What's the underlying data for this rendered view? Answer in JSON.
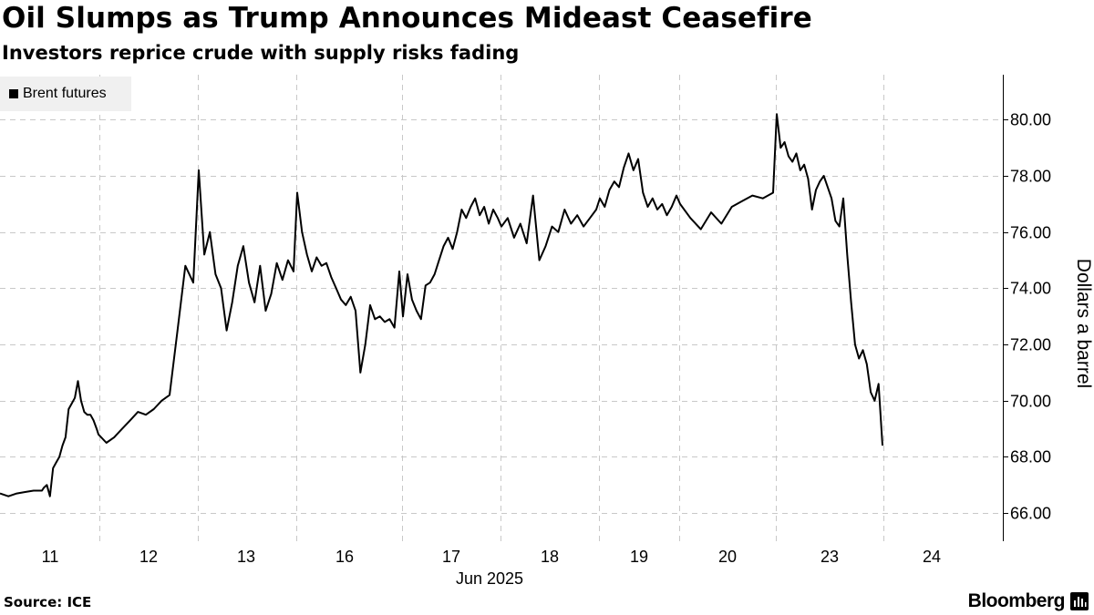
{
  "header": {
    "title": "Oil Slumps as Trump Announces Mideast Ceasefire",
    "subtitle": "Investors reprice crude with supply risks fading"
  },
  "legend": {
    "label": "Brent futures",
    "color": "#000000"
  },
  "footer": {
    "source": "Source: ICE",
    "brand": "Bloomberg"
  },
  "chart_data": {
    "type": "line",
    "title": "Oil Slumps as Trump Announces Mideast Ceasefire",
    "subtitle": "Investors reprice crude with supply risks fading",
    "ylabel": "Dollars a barrel",
    "xlabel": "Jun 2025",
    "ylim": [
      65.0,
      81.6
    ],
    "y_ticks": [
      "66.00",
      "68.00",
      "70.00",
      "72.00",
      "74.00",
      "76.00",
      "78.00",
      "80.00"
    ],
    "x_ticks": [
      "11",
      "12",
      "13",
      "16",
      "17",
      "18",
      "19",
      "20",
      "23",
      "24"
    ],
    "grid": true,
    "legend_position": "top-left",
    "y_axis_position": "right",
    "series": [
      {
        "name": "Brent futures",
        "color": "#000000",
        "points": [
          [
            "10 Jun",
            66.7
          ],
          [
            "10 Jun",
            66.6
          ],
          [
            "10 Jun",
            66.7
          ],
          [
            "10 Jun",
            66.75
          ],
          [
            "10 Jun",
            66.8
          ],
          [
            "10 Jun",
            66.8
          ],
          [
            "11 Jun",
            66.9
          ],
          [
            "11 Jun",
            67.0
          ],
          [
            "11 Jun",
            66.6
          ],
          [
            "11 Jun",
            67.6
          ],
          [
            "11 Jun",
            67.8
          ],
          [
            "11 Jun",
            68.0
          ],
          [
            "11 Jun",
            68.4
          ],
          [
            "11 Jun",
            68.7
          ],
          [
            "11 Jun",
            69.7
          ],
          [
            "11 Jun",
            69.9
          ],
          [
            "11 Jun",
            70.1
          ],
          [
            "11 Jun",
            70.7
          ],
          [
            "11 Jun",
            70.0
          ],
          [
            "11 Jun",
            69.6
          ],
          [
            "11 Jun",
            69.5
          ],
          [
            "11 Jun",
            69.5
          ],
          [
            "11 Jun",
            69.3
          ],
          [
            "11 Jun",
            69.0
          ],
          [
            "12 Jun",
            68.8
          ],
          [
            "12 Jun",
            68.5
          ],
          [
            "12 Jun",
            68.7
          ],
          [
            "12 Jun",
            69.0
          ],
          [
            "12 Jun",
            69.3
          ],
          [
            "12 Jun",
            69.6
          ],
          [
            "12 Jun",
            69.5
          ],
          [
            "12 Jun",
            69.7
          ],
          [
            "12 Jun",
            70.0
          ],
          [
            "12 Jun",
            70.2
          ],
          [
            "12 Jun",
            72.5
          ],
          [
            "12 Jun",
            74.8
          ],
          [
            "12 Jun",
            74.2
          ],
          [
            "13 Jun",
            78.2
          ],
          [
            "13 Jun",
            75.2
          ],
          [
            "13 Jun",
            76.0
          ],
          [
            "13 Jun",
            74.5
          ],
          [
            "13 Jun",
            74.0
          ],
          [
            "13 Jun",
            72.5
          ],
          [
            "13 Jun",
            73.5
          ],
          [
            "13 Jun",
            74.8
          ],
          [
            "13 Jun",
            75.5
          ],
          [
            "13 Jun",
            74.2
          ],
          [
            "13 Jun",
            73.5
          ],
          [
            "13 Jun",
            74.8
          ],
          [
            "13 Jun",
            73.2
          ],
          [
            "13 Jun",
            73.8
          ],
          [
            "13 Jun",
            74.9
          ],
          [
            "13 Jun",
            74.3
          ],
          [
            "13 Jun",
            75.0
          ],
          [
            "13 Jun",
            74.6
          ],
          [
            "16 Jun",
            77.4
          ],
          [
            "16 Jun",
            76.0
          ],
          [
            "16 Jun",
            75.2
          ],
          [
            "16 Jun",
            74.6
          ],
          [
            "16 Jun",
            75.1
          ],
          [
            "16 Jun",
            74.8
          ],
          [
            "16 Jun",
            74.9
          ],
          [
            "16 Jun",
            74.4
          ],
          [
            "16 Jun",
            74.0
          ],
          [
            "16 Jun",
            73.6
          ],
          [
            "16 Jun",
            73.4
          ],
          [
            "16 Jun",
            73.7
          ],
          [
            "16 Jun",
            73.2
          ],
          [
            "16 Jun",
            71.0
          ],
          [
            "16 Jun",
            72.0
          ],
          [
            "16 Jun",
            73.4
          ],
          [
            "16 Jun",
            72.9
          ],
          [
            "16 Jun",
            73.0
          ],
          [
            "16 Jun",
            72.8
          ],
          [
            "16 Jun",
            72.9
          ],
          [
            "16 Jun",
            72.6
          ],
          [
            "16 Jun",
            74.6
          ],
          [
            "17 Jun",
            73.0
          ],
          [
            "17 Jun",
            74.5
          ],
          [
            "17 Jun",
            73.6
          ],
          [
            "17 Jun",
            73.2
          ],
          [
            "17 Jun",
            72.9
          ],
          [
            "17 Jun",
            74.1
          ],
          [
            "17 Jun",
            74.2
          ],
          [
            "17 Jun",
            74.5
          ],
          [
            "17 Jun",
            75.0
          ],
          [
            "17 Jun",
            75.5
          ],
          [
            "17 Jun",
            75.8
          ],
          [
            "17 Jun",
            75.4
          ],
          [
            "17 Jun",
            76.0
          ],
          [
            "17 Jun",
            76.8
          ],
          [
            "17 Jun",
            76.5
          ],
          [
            "17 Jun",
            76.9
          ],
          [
            "17 Jun",
            77.2
          ],
          [
            "17 Jun",
            76.6
          ],
          [
            "17 Jun",
            76.9
          ],
          [
            "17 Jun",
            76.3
          ],
          [
            "17 Jun",
            76.8
          ],
          [
            "17 Jun",
            76.5
          ],
          [
            "18 Jun",
            76.2
          ],
          [
            "18 Jun",
            76.5
          ],
          [
            "18 Jun",
            75.8
          ],
          [
            "18 Jun",
            76.3
          ],
          [
            "18 Jun",
            75.6
          ],
          [
            "18 Jun",
            77.3
          ],
          [
            "18 Jun",
            75.0
          ],
          [
            "18 Jun",
            75.5
          ],
          [
            "18 Jun",
            76.2
          ],
          [
            "18 Jun",
            76.0
          ],
          [
            "18 Jun",
            76.8
          ],
          [
            "18 Jun",
            76.3
          ],
          [
            "18 Jun",
            76.6
          ],
          [
            "18 Jun",
            76.2
          ],
          [
            "18 Jun",
            76.5
          ],
          [
            "18 Jun",
            76.8
          ],
          [
            "19 Jun",
            77.2
          ],
          [
            "19 Jun",
            76.9
          ],
          [
            "19 Jun",
            77.5
          ],
          [
            "19 Jun",
            77.8
          ],
          [
            "19 Jun",
            77.6
          ],
          [
            "19 Jun",
            78.3
          ],
          [
            "19 Jun",
            78.8
          ],
          [
            "19 Jun",
            78.2
          ],
          [
            "19 Jun",
            78.6
          ],
          [
            "19 Jun",
            77.4
          ],
          [
            "19 Jun",
            76.9
          ],
          [
            "19 Jun",
            77.2
          ],
          [
            "19 Jun",
            76.8
          ],
          [
            "19 Jun",
            77.0
          ],
          [
            "19 Jun",
            76.6
          ],
          [
            "19 Jun",
            76.9
          ],
          [
            "19 Jun",
            77.3
          ],
          [
            "20 Jun",
            77.0
          ],
          [
            "20 Jun",
            76.5
          ],
          [
            "20 Jun",
            76.1
          ],
          [
            "20 Jun",
            76.7
          ],
          [
            "20 Jun",
            76.3
          ],
          [
            "20 Jun",
            76.9
          ],
          [
            "20 Jun",
            77.1
          ],
          [
            "20 Jun",
            77.3
          ],
          [
            "20 Jun",
            77.2
          ],
          [
            "20 Jun",
            77.4
          ],
          [
            "23 Jun",
            80.2
          ],
          [
            "23 Jun",
            79.0
          ],
          [
            "23 Jun",
            79.2
          ],
          [
            "23 Jun",
            78.7
          ],
          [
            "23 Jun",
            78.5
          ],
          [
            "23 Jun",
            78.8
          ],
          [
            "23 Jun",
            78.2
          ],
          [
            "23 Jun",
            78.4
          ],
          [
            "23 Jun",
            77.9
          ],
          [
            "23 Jun",
            76.8
          ],
          [
            "23 Jun",
            77.5
          ],
          [
            "23 Jun",
            77.8
          ],
          [
            "23 Jun",
            78.0
          ],
          [
            "23 Jun",
            77.6
          ],
          [
            "23 Jun",
            77.2
          ],
          [
            "23 Jun",
            76.4
          ],
          [
            "23 Jun",
            76.2
          ],
          [
            "23 Jun",
            77.2
          ],
          [
            "23 Jun",
            75.2
          ],
          [
            "23 Jun",
            73.5
          ],
          [
            "23 Jun",
            72.0
          ],
          [
            "23 Jun",
            71.5
          ],
          [
            "23 Jun",
            71.8
          ],
          [
            "23 Jun",
            71.3
          ],
          [
            "23 Jun",
            70.3
          ],
          [
            "23 Jun",
            70.0
          ],
          [
            "23 Jun",
            70.6
          ],
          [
            "23 Jun",
            68.4
          ]
        ]
      }
    ]
  }
}
